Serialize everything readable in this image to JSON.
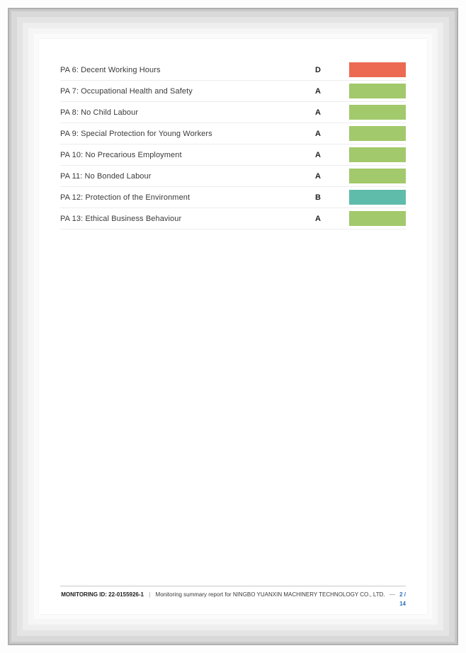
{
  "table": {
    "rows": [
      {
        "label": "PA 6: Decent Working Hours",
        "rating": "D",
        "color": "#EC6A52"
      },
      {
        "label": "PA 7: Occupational Health and Safety",
        "rating": "A",
        "color": "#A2C96B"
      },
      {
        "label": "PA 8: No Child Labour",
        "rating": "A",
        "color": "#A2C96B"
      },
      {
        "label": "PA 9: Special Protection for Young Workers",
        "rating": "A",
        "color": "#A2C96B"
      },
      {
        "label": "PA 10: No Precarious Employment",
        "rating": "A",
        "color": "#A2C96B"
      },
      {
        "label": "PA 11: No Bonded Labour",
        "rating": "A",
        "color": "#A2C96B"
      },
      {
        "label": "PA 12: Protection of the Environment",
        "rating": "B",
        "color": "#5FBCAB"
      },
      {
        "label": "PA 13: Ethical Business Behaviour",
        "rating": "A",
        "color": "#A2C96B"
      }
    ]
  },
  "footer": {
    "monitoring_id_label": "MONITORING ID:",
    "monitoring_id": "22-0155926-1",
    "separator": "|",
    "report_text": "Monitoring summary report for NINGBO YUANXIN MACHINERY TECHNOLOGY CO., LTD.",
    "dash": "—",
    "page_indicator": "2 / 14"
  },
  "colors": {
    "rating_a_green": "#A2C96B",
    "rating_b_teal": "#5FBCAB",
    "rating_d_red": "#EC6A52",
    "page_indicator_blue": "#2A6EBB",
    "row_separator": "#ececec",
    "footer_rule": "#c9c9c9"
  }
}
